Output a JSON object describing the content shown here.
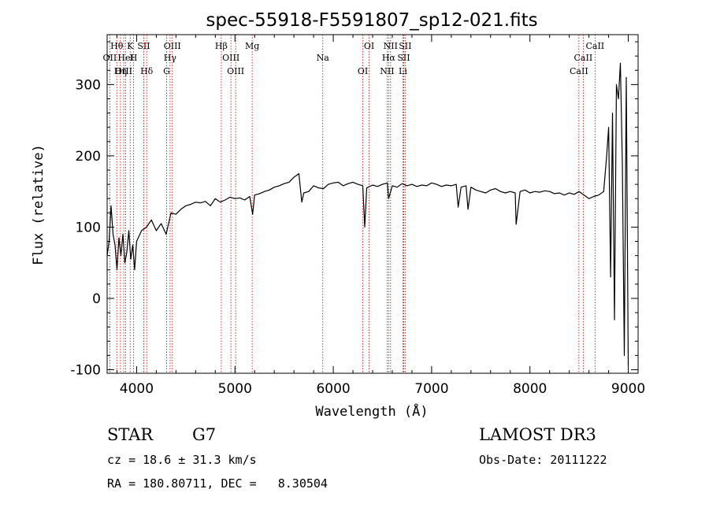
{
  "chart_data": {
    "type": "line",
    "title": "spec-55918-F5591807_sp12-021.fits",
    "xlabel": "Wavelength (Å)",
    "ylabel": "Flux (relative)",
    "xlim": [
      3700,
      9100
    ],
    "ylim": [
      -105,
      370
    ],
    "x_ticks": [
      4000,
      5000,
      6000,
      7000,
      8000,
      9000
    ],
    "y_ticks": [
      -100,
      0,
      100,
      200,
      300
    ],
    "series": [
      {
        "name": "flux",
        "x": [
          3700,
          3720,
          3740,
          3760,
          3780,
          3800,
          3820,
          3840,
          3860,
          3880,
          3900,
          3920,
          3940,
          3960,
          3980,
          4000,
          4050,
          4100,
          4150,
          4200,
          4250,
          4300,
          4350,
          4400,
          4450,
          4500,
          4550,
          4600,
          4650,
          4700,
          4750,
          4800,
          4850,
          4900,
          4950,
          5000,
          5050,
          5100,
          5150,
          5180,
          5200,
          5250,
          5300,
          5350,
          5400,
          5450,
          5500,
          5550,
          5600,
          5650,
          5660,
          5680,
          5700,
          5750,
          5800,
          5850,
          5900,
          5950,
          6000,
          6050,
          6100,
          6150,
          6200,
          6250,
          6300,
          6320,
          6340,
          6400,
          6450,
          6500,
          6550,
          6563,
          6600,
          6650,
          6700,
          6750,
          6800,
          6850,
          6900,
          6950,
          7000,
          7050,
          7100,
          7150,
          7200,
          7250,
          7270,
          7300,
          7350,
          7370,
          7400,
          7450,
          7500,
          7550,
          7600,
          7650,
          7700,
          7750,
          7800,
          7850,
          7860,
          7900,
          7950,
          8000,
          8050,
          8100,
          8150,
          8200,
          8250,
          8300,
          8350,
          8400,
          8450,
          8500,
          8550,
          8600,
          8650,
          8700,
          8750,
          8780,
          8800,
          8820,
          8840,
          8860,
          8880,
          8900,
          8920,
          8940,
          8960,
          8980,
          9000
        ],
        "y": [
          60,
          80,
          130,
          90,
          75,
          40,
          85,
          60,
          90,
          50,
          65,
          95,
          55,
          75,
          40,
          80,
          95,
          100,
          110,
          95,
          105,
          90,
          120,
          118,
          125,
          130,
          132,
          135,
          134,
          136,
          130,
          140,
          135,
          138,
          142,
          140,
          141,
          138,
          143,
          118,
          145,
          147,
          150,
          152,
          156,
          158,
          161,
          163,
          170,
          175,
          162,
          135,
          148,
          150,
          158,
          155,
          154,
          160,
          162,
          163,
          158,
          161,
          163,
          160,
          158,
          100,
          155,
          159,
          157,
          160,
          162,
          140,
          158,
          156,
          161,
          158,
          160,
          157,
          159,
          158,
          162,
          160,
          157,
          159,
          158,
          160,
          128,
          156,
          158,
          125,
          156,
          152,
          150,
          148,
          152,
          154,
          150,
          148,
          150,
          148,
          104,
          150,
          152,
          148,
          150,
          149,
          151,
          150,
          147,
          148,
          145,
          148,
          146,
          150,
          145,
          140,
          143,
          145,
          150,
          200,
          240,
          30,
          260,
          -30,
          300,
          280,
          330,
          190,
          -80,
          310,
          -95
        ]
      }
    ],
    "line_markers": [
      {
        "label": "Hθ",
        "wavelength": 3798
      },
      {
        "label": "OII",
        "wavelength": 3727
      },
      {
        "label": "OIII",
        "wavelength": 3869
      },
      {
        "label": "K",
        "wavelength": 3934
      },
      {
        "label": "HeI",
        "wavelength": 3889
      },
      {
        "label": "Hη",
        "wavelength": 3835
      },
      {
        "label": "SII",
        "wavelength": 4072
      },
      {
        "label": "H",
        "wavelength": 3969
      },
      {
        "label": "Hδ",
        "wavelength": 4102
      },
      {
        "label": "OIII",
        "wavelength": 4363
      },
      {
        "label": "Hγ",
        "wavelength": 4340
      },
      {
        "label": "G",
        "wavelength": 4305
      },
      {
        "label": "Hβ",
        "wavelength": 4861
      },
      {
        "label": "OIII",
        "wavelength": 4959
      },
      {
        "label": "OIII",
        "wavelength": 5007
      },
      {
        "label": "Mg",
        "wavelength": 5175
      },
      {
        "label": "Na",
        "wavelength": 5893
      },
      {
        "label": "OI",
        "wavelength": 6300
      },
      {
        "label": "OI",
        "wavelength": 6364
      },
      {
        "label": "Hα",
        "wavelength": 6563
      },
      {
        "label": "NII",
        "wavelength": 6548
      },
      {
        "label": "NII",
        "wavelength": 6583
      },
      {
        "label": "SII",
        "wavelength": 6716
      },
      {
        "label": "Li",
        "wavelength": 6708
      },
      {
        "label": "SII",
        "wavelength": 6731
      },
      {
        "label": "CaII",
        "wavelength": 8542
      },
      {
        "label": "CaII",
        "wavelength": 8498
      },
      {
        "label": "CaII",
        "wavelength": 8662
      }
    ]
  },
  "info": {
    "star_class": "STAR",
    "subclass": "G7",
    "survey": "LAMOST DR3",
    "cz": "cz = 18.6 ± 31.3 km/s",
    "obs_date": "Obs-Date: 20111222",
    "coords": "RA = 180.80711, DEC =   8.30504"
  },
  "colors": {
    "line": "#000000",
    "marker": "#cc0000",
    "background": "#ffffff"
  }
}
